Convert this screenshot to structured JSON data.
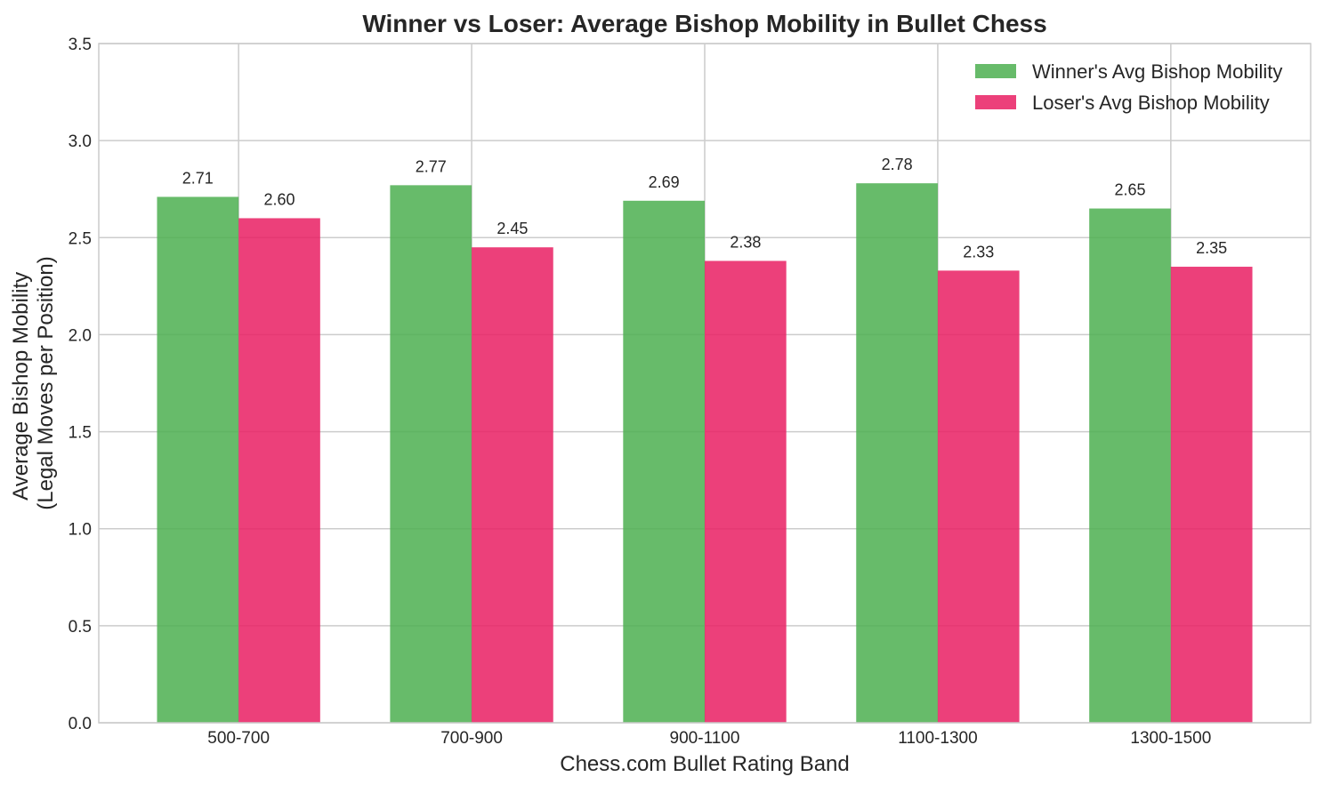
{
  "chart_data": {
    "type": "bar",
    "title": "Winner vs Loser: Average Bishop Mobility in Bullet Chess",
    "xlabel": "Chess.com Bullet Rating Band",
    "ylabel_line1": "Average Bishop Mobility",
    "ylabel_line2": "(Legal Moves per Position)",
    "categories": [
      "500-700",
      "700-900",
      "900-1100",
      "1100-1300",
      "1300-1500"
    ],
    "series": [
      {
        "name": "Winner's Avg Bishop Mobility",
        "color": "#4caf50",
        "values": [
          2.71,
          2.77,
          2.69,
          2.78,
          2.65
        ],
        "labels": [
          "2.71",
          "2.77",
          "2.69",
          "2.78",
          "2.65"
        ]
      },
      {
        "name": "Loser's Avg Bishop Mobility",
        "color": "#e91e63",
        "values": [
          2.6,
          2.45,
          2.38,
          2.33,
          2.35
        ],
        "labels": [
          "2.60",
          "2.45",
          "2.38",
          "2.33",
          "2.35"
        ]
      }
    ],
    "ylim": [
      0,
      3.5
    ],
    "yticks": [
      "0.0",
      "0.5",
      "1.0",
      "1.5",
      "2.0",
      "2.5",
      "3.0",
      "3.5"
    ],
    "grid": true,
    "legend_position": "top-right"
  }
}
